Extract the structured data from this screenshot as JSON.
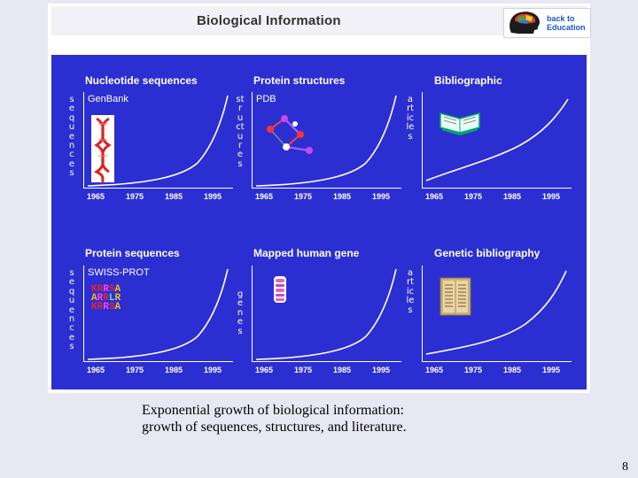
{
  "slide": {
    "title": "Biological Information",
    "back_line1": "back to",
    "back_line2": "Education",
    "caption_line1": "Exponential growth of biological information:",
    "caption_line2": "growth of sequences, structures, and literature.",
    "page_number": "8",
    "panel_color": "#2b2fd2"
  },
  "chart_data": [
    {
      "type": "line",
      "title": "Nucleotide sequences",
      "ylabel": "sequences",
      "inner_label": "GenBank",
      "x_ticks": [
        "1965",
        "1975",
        "1985",
        "1995"
      ],
      "shape": "exponential",
      "icon": "dna-icon"
    },
    {
      "type": "line",
      "title": "Protein structures",
      "ylabel": "structures",
      "inner_label": "PDB",
      "x_ticks": [
        "1965",
        "1975",
        "1985",
        "1995"
      ],
      "shape": "exponential",
      "icon": "molecule-icon"
    },
    {
      "type": "line",
      "title": "Bibliographic",
      "ylabel": "articles",
      "inner_label": "",
      "x_ticks": [
        "1965",
        "1975",
        "1985",
        "1995"
      ],
      "shape": "gradual-growth",
      "icon": "book-icon"
    },
    {
      "type": "line",
      "title": "Protein sequences",
      "ylabel": "sequences",
      "inner_label": "SWISS-PROT",
      "x_ticks": [
        "1965",
        "1975",
        "1985",
        "1995"
      ],
      "shape": "exponential",
      "icon": "sequence-letters-icon",
      "seq_lines": [
        "KRRSA",
        "ARRLR",
        "KRRSA"
      ]
    },
    {
      "type": "line",
      "title": "Mapped human gene",
      "ylabel": "genes",
      "inner_label": "",
      "x_ticks": [
        "1965",
        "1975",
        "1985",
        "1995"
      ],
      "shape": "exponential",
      "icon": "chromosome-icon"
    },
    {
      "type": "line",
      "title": "Genetic bibliography",
      "ylabel": "articles",
      "inner_label": "",
      "x_ticks": [
        "1965",
        "1975",
        "1985",
        "1995"
      ],
      "shape": "accelerating-growth",
      "icon": "manuscript-icon"
    }
  ]
}
